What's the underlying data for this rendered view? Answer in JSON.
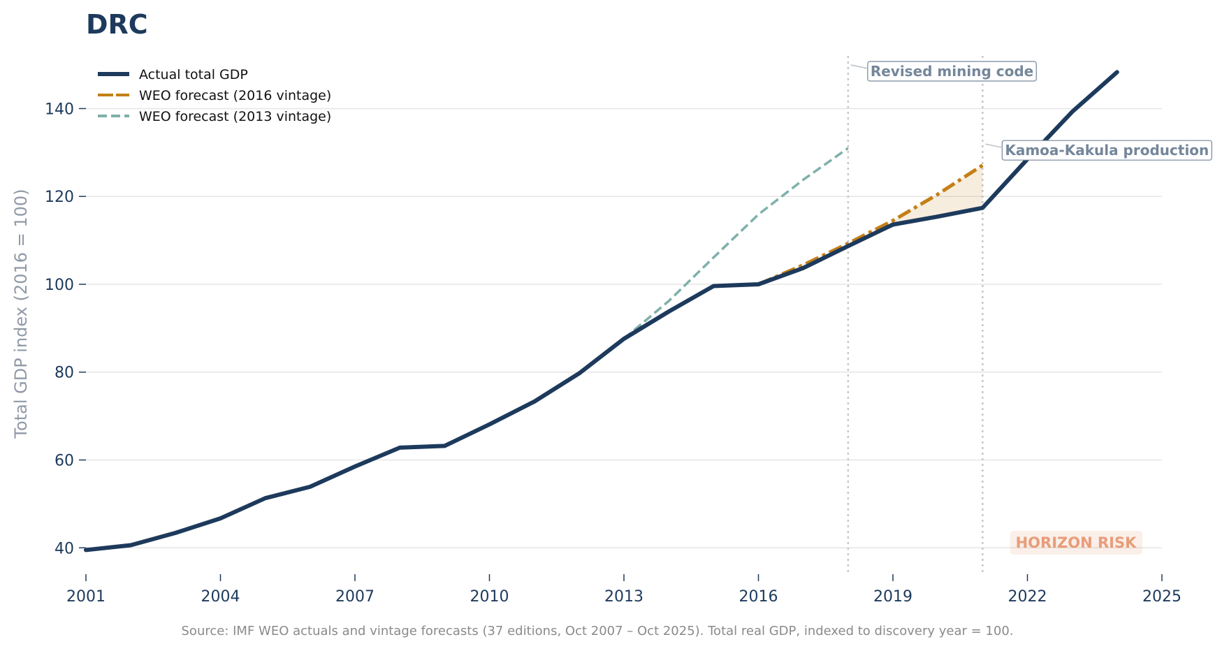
{
  "chart_data": {
    "type": "line",
    "title": "DRC",
    "ylabel": "Total GDP index (2016 = 100)",
    "xlabel": "",
    "xlim": [
      2001,
      2025
    ],
    "ylim": [
      34,
      152
    ],
    "x_ticks": [
      2001,
      2004,
      2007,
      2010,
      2013,
      2016,
      2019,
      2022,
      2025
    ],
    "y_ticks": [
      40,
      60,
      80,
      100,
      120,
      140
    ],
    "grid": "horizontal",
    "legend_position": "top-left",
    "series": [
      {
        "name": "Actual total GDP",
        "style": "solid",
        "color": "#1d3a5c",
        "x": [
          2001,
          2002,
          2003,
          2004,
          2005,
          2006,
          2007,
          2008,
          2009,
          2010,
          2011,
          2012,
          2013,
          2014,
          2015,
          2016,
          2017,
          2018,
          2019,
          2020,
          2021,
          2022,
          2023,
          2024
        ],
        "values": [
          39.5,
          40.6,
          43.4,
          46.7,
          51.3,
          53.9,
          58.5,
          62.8,
          63.2,
          68.1,
          73.3,
          79.7,
          87.6,
          93.8,
          99.6,
          100.0,
          103.7,
          108.7,
          113.6,
          115.4,
          117.4,
          128.5,
          139.3,
          148.3
        ]
      },
      {
        "name": "WEO forecast (2016 vintage)",
        "style": "dashdot",
        "color": "#c47f17",
        "x": [
          2016,
          2017,
          2018,
          2019,
          2020,
          2021
        ],
        "values": [
          100.0,
          104.4,
          109.3,
          114.5,
          120.5,
          127.1
        ]
      },
      {
        "name": "WEO forecast (2013 vintage)",
        "style": "dashed",
        "color": "#7fb0aa",
        "x": [
          2013,
          2014,
          2015,
          2016,
          2017,
          2018
        ],
        "values": [
          87.6,
          96.2,
          106.1,
          115.9,
          123.8,
          131.0
        ]
      }
    ],
    "shaded_gap": {
      "between": [
        "WEO forecast (2016 vintage)",
        "Actual total GDP"
      ],
      "x": [
        2016,
        2017,
        2018,
        2019,
        2020,
        2021
      ],
      "color": "#c47f17"
    },
    "vertical_markers": [
      {
        "x": 2018,
        "label": "Revised mining code",
        "label_y": 148.5
      },
      {
        "x": 2021,
        "label": "Kamoa-Kakula production",
        "label_y": 130.5
      }
    ],
    "badge": {
      "text": "HORIZON RISK",
      "color": "#e07b4a"
    },
    "source": "Source: IMF WEO actuals and vintage forecasts (37 editions, Oct 2007 – Oct 2025). Total real GDP, indexed to discovery year = 100."
  }
}
